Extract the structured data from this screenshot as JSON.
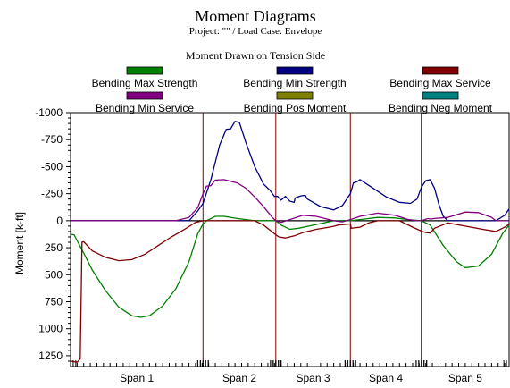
{
  "chart_data": {
    "type": "line",
    "title": "Moment Diagrams",
    "subtitle": "Project:  \"\" / Load Case: Envelope",
    "note": "Moment Drawn on Tension Side",
    "ylabel": "Moment [k-ft]",
    "ylim": [
      -1000,
      1350
    ],
    "y_axis_inverted": true,
    "yticks": [
      -1000,
      -750,
      -500,
      -250,
      0,
      250,
      500,
      750,
      1000,
      1250
    ],
    "xlim": [
      0,
      100
    ],
    "spans": [
      {
        "label": "Span 1",
        "start": 0,
        "end": 30.2
      },
      {
        "label": "Span 2",
        "start": 30.2,
        "end": 46.8
      },
      {
        "label": "Span 3",
        "start": 46.8,
        "end": 63.8
      },
      {
        "label": "Span 4",
        "start": 63.8,
        "end": 80.0
      },
      {
        "label": "Span 5",
        "start": 80.0,
        "end": 100
      }
    ],
    "support_line_colors": [
      "#800000",
      "#800000",
      "#800000",
      "#000000"
    ],
    "legend_position": "top",
    "grid": false,
    "series": [
      {
        "name": "Bending Max Strength",
        "color": "#008000",
        "points": [
          [
            0,
            125
          ],
          [
            0.8,
            130
          ],
          [
            3,
            300
          ],
          [
            5,
            460
          ],
          [
            8,
            650
          ],
          [
            11,
            800
          ],
          [
            14,
            880
          ],
          [
            16,
            895
          ],
          [
            18,
            880
          ],
          [
            21,
            790
          ],
          [
            24,
            630
          ],
          [
            27,
            380
          ],
          [
            29,
            120
          ],
          [
            30.2,
            30
          ],
          [
            31,
            0
          ],
          [
            33,
            -40
          ],
          [
            35,
            -40
          ],
          [
            38,
            -20
          ],
          [
            42,
            0
          ],
          [
            46.8,
            0
          ],
          [
            48,
            40
          ],
          [
            50,
            80
          ],
          [
            52,
            70
          ],
          [
            56,
            35
          ],
          [
            60,
            0
          ],
          [
            62,
            0
          ],
          [
            63.8,
            0
          ],
          [
            66,
            -10
          ],
          [
            70,
            -30
          ],
          [
            74,
            -25
          ],
          [
            77,
            -10
          ],
          [
            80,
            0
          ],
          [
            82,
            40
          ],
          [
            85,
            230
          ],
          [
            88,
            380
          ],
          [
            90,
            435
          ],
          [
            93,
            420
          ],
          [
            96,
            310
          ],
          [
            98.5,
            120
          ],
          [
            100,
            40
          ]
        ]
      },
      {
        "name": "Bending Min Strength",
        "color": "#000080",
        "points": [
          [
            0,
            0
          ],
          [
            27,
            0
          ],
          [
            29,
            -90
          ],
          [
            30.2,
            -160
          ],
          [
            32,
            -380
          ],
          [
            34,
            -700
          ],
          [
            35.5,
            -845
          ],
          [
            36.5,
            -850
          ],
          [
            37.5,
            -920
          ],
          [
            38.5,
            -910
          ],
          [
            40,
            -720
          ],
          [
            42,
            -500
          ],
          [
            44,
            -340
          ],
          [
            45.5,
            -280
          ],
          [
            46.5,
            -225
          ],
          [
            47.2,
            -225
          ],
          [
            48,
            -190
          ],
          [
            49,
            -225
          ],
          [
            50,
            -180
          ],
          [
            51,
            -170
          ],
          [
            51.2,
            -210
          ],
          [
            52.5,
            -230
          ],
          [
            53.5,
            -235
          ],
          [
            54,
            -200
          ],
          [
            57,
            -130
          ],
          [
            60,
            -100
          ],
          [
            62,
            -140
          ],
          [
            63.8,
            -250
          ],
          [
            64.5,
            -350
          ],
          [
            65.3,
            -360
          ],
          [
            66,
            -380
          ],
          [
            69,
            -300
          ],
          [
            72,
            -220
          ],
          [
            75,
            -170
          ],
          [
            77.5,
            -160
          ],
          [
            79,
            -200
          ],
          [
            80,
            -310
          ],
          [
            81,
            -370
          ],
          [
            82,
            -380
          ],
          [
            83,
            -300
          ],
          [
            84,
            -150
          ],
          [
            85,
            -40
          ],
          [
            86,
            0
          ],
          [
            97,
            0
          ],
          [
            99,
            -50
          ],
          [
            100,
            -110
          ]
        ]
      },
      {
        "name": "Bending Max Service",
        "color": "#800000",
        "points": [
          [
            0,
            1300
          ],
          [
            1.5,
            1310
          ],
          [
            2.2,
            1280
          ],
          [
            2.6,
            200
          ],
          [
            3,
            195
          ],
          [
            5,
            280
          ],
          [
            8,
            340
          ],
          [
            11,
            370
          ],
          [
            14,
            360
          ],
          [
            17,
            310
          ],
          [
            20,
            230
          ],
          [
            23,
            150
          ],
          [
            26,
            80
          ],
          [
            28.5,
            15
          ],
          [
            30.2,
            0
          ],
          [
            42,
            0
          ],
          [
            44,
            40
          ],
          [
            46.8,
            130
          ],
          [
            47.5,
            150
          ],
          [
            49,
            160
          ],
          [
            51,
            140
          ],
          [
            53,
            110
          ],
          [
            56,
            80
          ],
          [
            59,
            60
          ],
          [
            60.2,
            50
          ],
          [
            61,
            40
          ],
          [
            63.8,
            30
          ],
          [
            64,
            70
          ],
          [
            66,
            60
          ],
          [
            68,
            20
          ],
          [
            70,
            0
          ],
          [
            75,
            0
          ],
          [
            78,
            60
          ],
          [
            80.2,
            100
          ],
          [
            81,
            110
          ],
          [
            82,
            115
          ],
          [
            83,
            70
          ],
          [
            86,
            20
          ],
          [
            90,
            50
          ],
          [
            94,
            80
          ],
          [
            97,
            100
          ],
          [
            99,
            60
          ],
          [
            100,
            30
          ]
        ]
      },
      {
        "name": "Bending Min Service",
        "color": "#800080",
        "points": [
          [
            0,
            0
          ],
          [
            24,
            0
          ],
          [
            27,
            -30
          ],
          [
            29,
            -120
          ],
          [
            30.2,
            -250
          ],
          [
            31,
            -320
          ],
          [
            32,
            -325
          ],
          [
            33,
            -375
          ],
          [
            35,
            -380
          ],
          [
            38,
            -350
          ],
          [
            40,
            -300
          ],
          [
            42,
            -220
          ],
          [
            44,
            -130
          ],
          [
            46,
            -30
          ],
          [
            46.8,
            0
          ],
          [
            48,
            15
          ],
          [
            50,
            -10
          ],
          [
            53,
            -50
          ],
          [
            56,
            -40
          ],
          [
            60,
            0
          ],
          [
            62,
            10
          ],
          [
            63.8,
            -10
          ],
          [
            66,
            -40
          ],
          [
            70,
            -70
          ],
          [
            74,
            -50
          ],
          [
            77,
            -10
          ],
          [
            79,
            0
          ],
          [
            80,
            0
          ],
          [
            81.5,
            -20
          ],
          [
            82,
            -15
          ],
          [
            83,
            -20
          ],
          [
            86,
            -30
          ],
          [
            90,
            -80
          ],
          [
            93,
            -75
          ],
          [
            96,
            -30
          ],
          [
            97,
            0
          ],
          [
            100,
            0
          ]
        ]
      },
      {
        "name": "Bending Pos Moment",
        "color": "#808000",
        "points": []
      },
      {
        "name": "Bending Neg Moment",
        "color": "#008080",
        "points": []
      }
    ]
  }
}
